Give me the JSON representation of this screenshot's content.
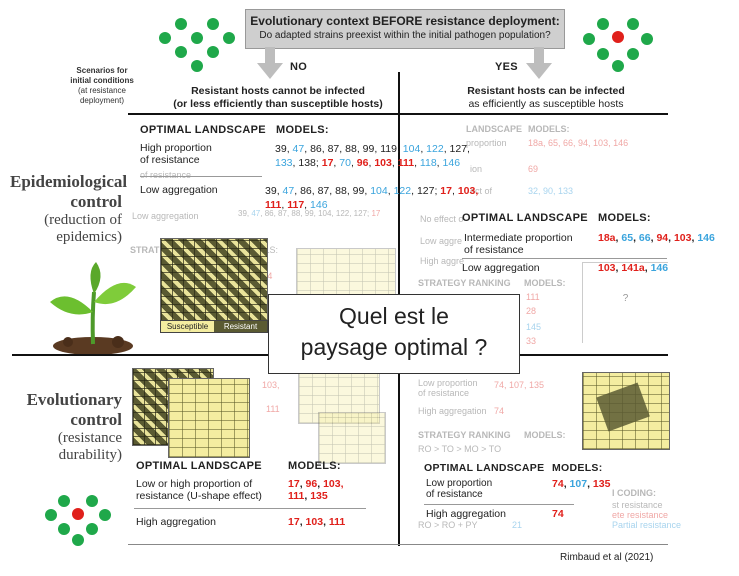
{
  "header": {
    "title": "Evolutionary context BEFORE resistance deployment:",
    "subtitle": "Do adapted strains preexist within the initial pathogen population?",
    "no": "NO",
    "yes": "YES"
  },
  "scenarios": {
    "line1": "Scenarios for",
    "line2": "initial conditions",
    "line3": "(at resistance",
    "line4": "deployment)"
  },
  "col_no": {
    "line1": "Resistant hosts cannot be infected",
    "line2": "(or less efficiently than susceptible hosts)"
  },
  "col_yes": {
    "line1": "Resistant hosts can be infected",
    "line2": "as efficiently as susceptible hosts"
  },
  "rows": {
    "epi": {
      "title1": "Epidemiological",
      "title2": "control",
      "sub1": "(reduction of",
      "sub2": "epidemics)"
    },
    "evo": {
      "title1": "Evolutionary",
      "title2": "control",
      "sub1": "(resistance",
      "sub2": "durability)"
    }
  },
  "labels": {
    "optimal": "OPTIMAL LANDSCAPE",
    "models": "MODELS:",
    "landscape_faded": "LANDSCAPE",
    "strategy_ranking": "STRATEGY RANKING",
    "legend_s": "Susceptible",
    "legend_r": "Resistant"
  },
  "epi_no": {
    "r1_label1": "High proportion",
    "r1_label2": "of resistance",
    "r1_models1": [
      "39",
      "47",
      "86",
      "87",
      "88",
      "99",
      "119",
      "104",
      "122",
      "127,"
    ],
    "r1_models2": [
      "133",
      "138;",
      "17",
      "70",
      "96",
      "103",
      "111",
      "118",
      "146"
    ],
    "r2_label": "Low aggregation",
    "r2_models1": [
      "39",
      "47",
      "86",
      "87",
      "88",
      "99",
      "104",
      "122",
      "127;",
      "17",
      "103,"
    ],
    "r2_models2": [
      "111",
      "117",
      "146"
    ]
  },
  "epi_yes": {
    "r1_label1": "Intermediate proportion",
    "r1_label2": "of resistance",
    "r1_models": [
      "18a",
      "65",
      "66",
      "94",
      "103",
      "146"
    ],
    "r2_label": "Low aggregation",
    "r2_models": [
      "103",
      "141a",
      "146"
    ]
  },
  "evo_no": {
    "r1_label1": "Low or high proportion of",
    "r1_label2": "resistance (U-shape effect)",
    "r1_models1": [
      "17",
      "96",
      "103,"
    ],
    "r1_models2": [
      "111",
      "135"
    ],
    "r2_label": "High aggregation",
    "r2_models": [
      "17",
      "103",
      "111"
    ]
  },
  "evo_yes": {
    "r1_label1": "Low proportion",
    "r1_label2": "of resistance",
    "r1_models": [
      "74",
      "107",
      "135"
    ],
    "r2_label": "High aggregation",
    "r2_models": [
      "74"
    ]
  },
  "faded_bits": {
    "f1": "High proportion",
    "f2": "of resistance",
    "f3": "Low aggregation",
    "f4": "No effect o",
    "f5": "Low aggre",
    "f6": "High aggre",
    "f7": "Low proportion",
    "f8": "of resistance",
    "f9": "High aggregation",
    "f10": "ion",
    "f11": "ect of",
    "f12": "proportion",
    "m1": "18a, 65, 66, 94, 103, 146",
    "m2": "69",
    "m3": "32, 90, 133",
    "m4": "74, 107, 135",
    "m5": "74",
    "m6": "111",
    "m7": "28",
    "m8": "145",
    "m9": "33",
    "m10": "114",
    "m11": "103,",
    "m12": "111",
    "m13": "RO > TO > MO > TO",
    "m14": "RO > RO + PY",
    "m15": "21",
    "m16": "I CODING:",
    "m17": "st resistance",
    "m18": "ete resistance",
    "m19": "Partial resistance",
    "m20": "?",
    "m21": "DELS:",
    "m22": "STRAT",
    "m23": "MODELS:"
  },
  "overlay": {
    "line1": "Quel est le",
    "line2": "paysage optimal ?"
  },
  "citation": "Rimbaud et al (2021)",
  "colors": {
    "green": "#1fa84a",
    "red": "#e0201b",
    "blue": "#3aa4dd"
  }
}
